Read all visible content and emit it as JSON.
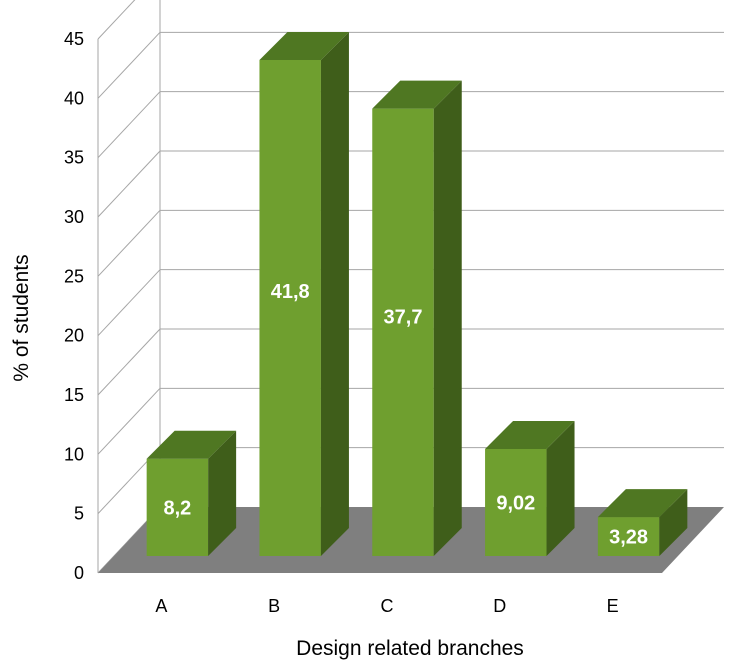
{
  "chart_data": {
    "type": "bar",
    "style": "3d-column",
    "categories": [
      "A",
      "B",
      "C",
      "D",
      "E"
    ],
    "values": [
      8.2,
      41.8,
      37.7,
      9.02,
      3.28
    ],
    "data_labels": [
      "8,2",
      "41,8",
      "37,7",
      "9,02",
      "3,28"
    ],
    "xlabel": "Design related branches",
    "ylabel": "% of students",
    "ylim": [
      0,
      45
    ],
    "yticks": [
      0,
      5,
      10,
      15,
      20,
      25,
      30,
      35,
      40,
      45
    ],
    "grid": true,
    "legend": "none",
    "colors": {
      "bar_front": "#6f9f2f",
      "bar_side": "#3f5e1a",
      "bar_top": "#4f7722",
      "floor": "#7f7f7f",
      "gridline": "#a6a6a6",
      "label_text": "#ffffff"
    }
  }
}
